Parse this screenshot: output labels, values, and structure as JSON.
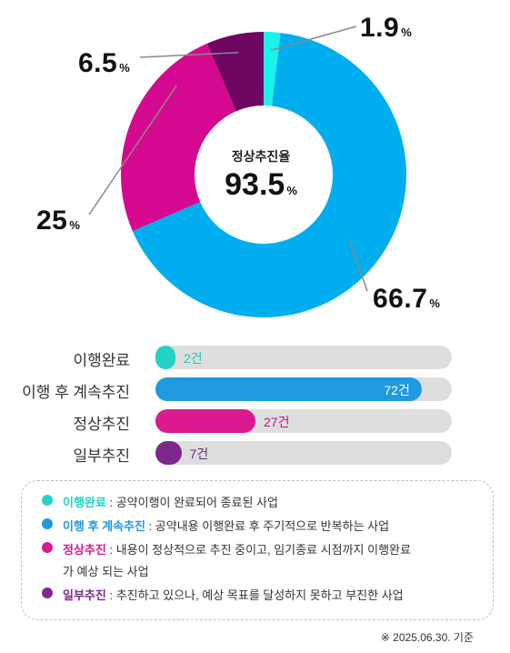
{
  "chart_data": {
    "type": "pie",
    "center": {
      "title": "정상추진율",
      "value": "93.5",
      "unit": "%"
    },
    "slices": [
      {
        "name": "이행완료",
        "value": 1.9,
        "label": "1.9",
        "unit": "%",
        "color": "#1bf0ea"
      },
      {
        "name": "이행 후 계속추진",
        "value": 66.7,
        "label": "66.7",
        "unit": "%",
        "color": "#00adee"
      },
      {
        "name": "정상추진",
        "value": 25,
        "label": "25",
        "unit": "%",
        "color": "#d4098f"
      },
      {
        "name": "일부추진",
        "value": 6.5,
        "label": "6.5",
        "unit": "%",
        "color": "#6e0662"
      }
    ],
    "bars": [
      {
        "name": "이행완료",
        "value": 2,
        "label": "2건",
        "color": "#22d3c5",
        "text_color": "#22c8bd"
      },
      {
        "name": "이행 후 계속추진",
        "value": 72,
        "label": "72건",
        "color": "#1f9ae0",
        "text_color": "#ffffff"
      },
      {
        "name": "정상추진",
        "value": 27,
        "label": "27건",
        "color": "#da1a8e",
        "text_color": "#c1177e"
      },
      {
        "name": "일부추진",
        "value": 7,
        "label": "7건",
        "color": "#7b2a8c",
        "text_color": "#6b2b7a"
      }
    ],
    "bar_max": 80
  },
  "legend": [
    {
      "term": "이행완료",
      "sep": " : ",
      "desc": "공약이행이 완료되어 종료된 사업",
      "color": "#22d3c5"
    },
    {
      "term": "이행 후 계속추진",
      "sep": " : ",
      "desc": "공약내용 이행완료 후 주기적으로 반복하는 사업",
      "color": "#1f9ae0"
    },
    {
      "term": "정상추진",
      "sep": " : ",
      "desc": "내용이 정상적으로 추진 중이고, 임기종료 시점까지 이행완료가 예상 되는 사업",
      "color": "#da1a8e"
    },
    {
      "term": "일부추진",
      "sep": " : ",
      "desc": "추진하고 있으나, 예상 목표를 달성하지 못하고 부진한 사업",
      "color": "#7b2a8c"
    }
  ],
  "footnote": "※ 2025.06.30. 기준"
}
